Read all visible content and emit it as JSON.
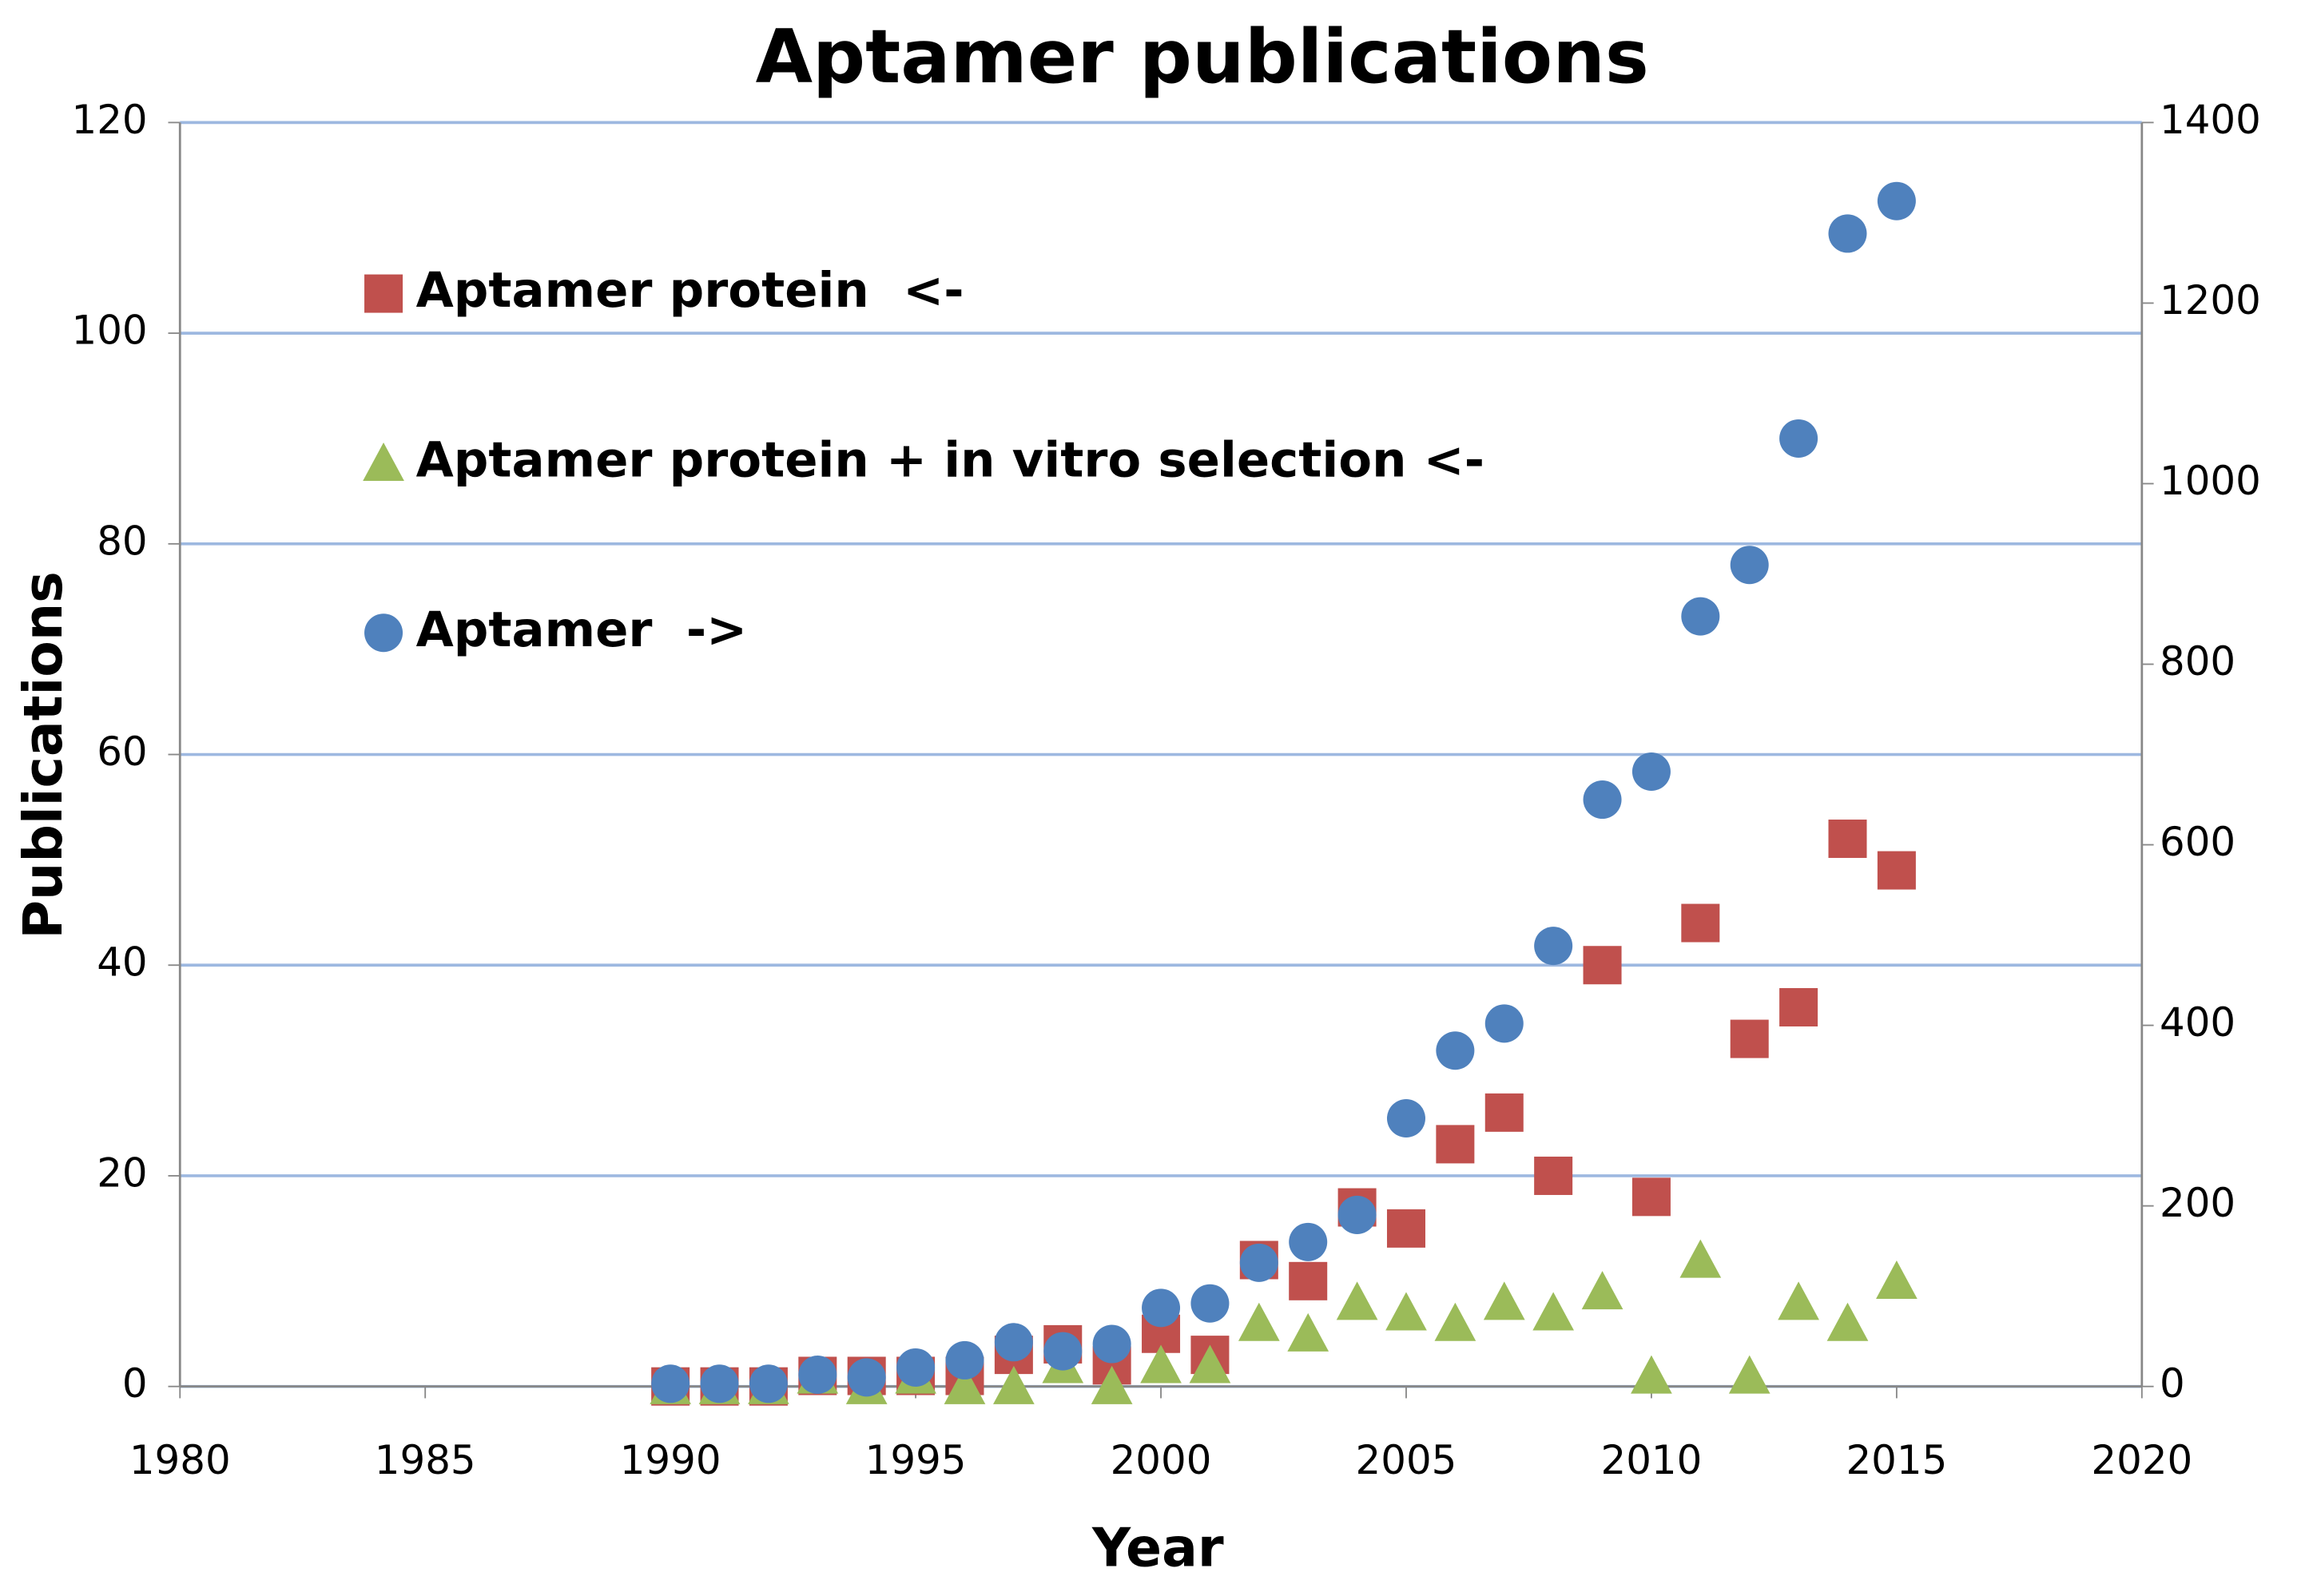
{
  "chart_data": {
    "type": "scatter",
    "title": "Aptamer publications",
    "x_label": "Year",
    "y_label": "Publications",
    "xlim": [
      1980,
      2020
    ],
    "xticks": [
      1980,
      1985,
      1990,
      1995,
      2000,
      2005,
      2010,
      2015,
      2020
    ],
    "ylim": [
      0,
      120
    ],
    "yticks": [
      0,
      20,
      40,
      60,
      80,
      100,
      120
    ],
    "y2lim": [
      0,
      1400
    ],
    "y2ticks": [
      0,
      200,
      400,
      600,
      800,
      1000,
      1200,
      1400
    ],
    "grid": true,
    "legend": "upper left",
    "x": [
      1990,
      1991,
      1992,
      1993,
      1994,
      1995,
      1996,
      1997,
      1998,
      1999,
      2000,
      2001,
      2002,
      2003,
      2004,
      2005,
      2006,
      2007,
      2008,
      2009,
      2010,
      2011,
      2012,
      2013,
      2014,
      2015
    ],
    "series": [
      {
        "name": "Aptamer protein  <-",
        "color": "#c0504d",
        "marker": "square",
        "values": [
          0,
          0,
          0,
          1,
          1,
          1,
          1,
          3,
          4,
          2,
          5,
          3,
          12,
          10,
          17,
          15,
          23,
          26,
          20,
          40,
          18,
          44,
          33,
          36,
          52,
          49
        ]
      },
      {
        "name": "Aptamer protein + in vitro selection <-",
        "color": "#9bbb59",
        "marker": "triangle",
        "values": [
          0,
          0,
          0,
          1,
          0,
          1,
          0,
          0,
          2,
          0,
          2,
          2,
          6,
          5,
          8,
          7,
          6,
          8,
          7,
          9,
          1,
          12,
          1,
          8,
          6,
          10
        ]
      },
      {
        "name": "Aptamer  ->",
        "color": "#4f81bd",
        "marker": "circle",
        "axis": "y2",
        "values": [
          3,
          3,
          3,
          13,
          10,
          21,
          29,
          49,
          39,
          47,
          87,
          92,
          137,
          160,
          190,
          297,
          372,
          402,
          488,
          650,
          681,
          853,
          910,
          1050,
          1277,
          1313
        ]
      }
    ]
  }
}
